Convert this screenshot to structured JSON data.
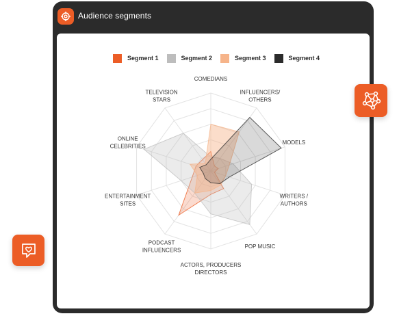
{
  "window": {
    "title": "Audience segments"
  },
  "icons": {
    "app": "target-icon",
    "network": "network-icon",
    "chat": "heart-chat-icon"
  },
  "colors": {
    "accent": "#ec5d26",
    "frame": "#2b2b2b"
  },
  "chart_data": {
    "type": "radar",
    "title": "",
    "axes": [
      [
        "COMEDIANS"
      ],
      [
        "INFLUENCERS/",
        "OTHERS"
      ],
      [
        "MODELS"
      ],
      [
        "WRITERS /",
        "AUTHORS"
      ],
      [
        "POP MUSIC"
      ],
      [
        "ACTORS, PRODUCERS",
        "DIRECTORS"
      ],
      [
        "PODCAST",
        "INFLUENCERS"
      ],
      [
        "ENTERTAINMENT",
        "SITES"
      ],
      [
        "ONLINE",
        "CELEBRITIES"
      ],
      [
        "TELEVISION",
        "STARS"
      ]
    ],
    "rings": 5,
    "max": 100,
    "legend_position": "top",
    "series": [
      {
        "name": "Segment 1",
        "color": "#ec5d26",
        "opacity": 0.22,
        "values": [
          25,
          8,
          10,
          5,
          28,
          30,
          70,
          25,
          20,
          18
        ]
      },
      {
        "name": "Segment 2",
        "color": "#bdbdbd",
        "opacity": 0.3,
        "values": [
          18,
          20,
          30,
          55,
          85,
          55,
          35,
          40,
          90,
          60
        ]
      },
      {
        "name": "Segment 3",
        "color": "#f6b48a",
        "opacity": 0.45,
        "values": [
          60,
          62,
          25,
          20,
          22,
          25,
          35,
          18,
          28,
          12
        ]
      },
      {
        "name": "Segment 4",
        "color": "#2b2b2b",
        "opacity": 0.18,
        "values": [
          15,
          85,
          95,
          25,
          20,
          15,
          12,
          10,
          15,
          10
        ]
      }
    ]
  }
}
